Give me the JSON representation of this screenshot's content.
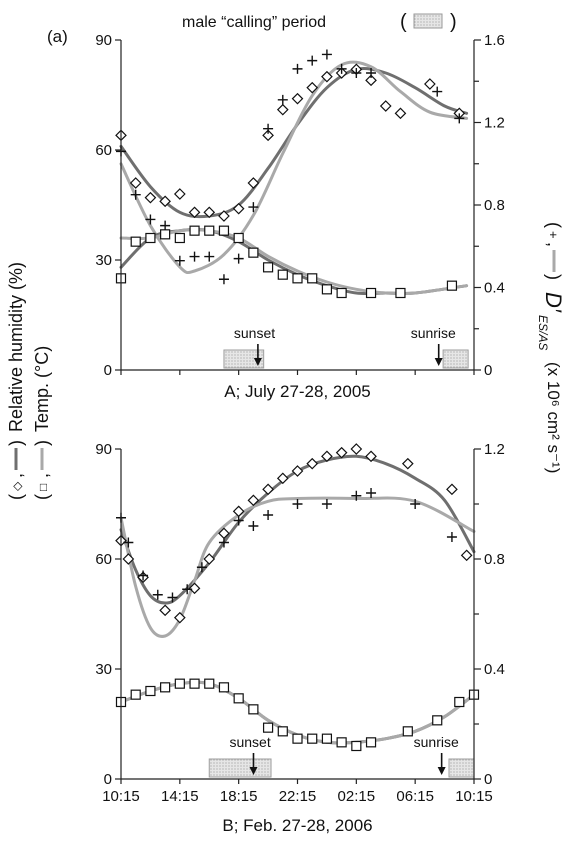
{
  "figure": {
    "panel_tag": "(a)",
    "header_text": "male “calling” period",
    "left_ylabel_rh": "Relative humidity (%)",
    "left_ylabel_temp": "Temp. (°C)",
    "right_ylabel_sub": "ES/AS",
    "right_ylabel_units": "(x 10⁶ cm² s⁻¹)",
    "colors": {
      "dark_line": "#6f6f6f",
      "light_line": "#a9a9a9",
      "axis": "#222222",
      "calling_fill": "#d9d9d9"
    }
  },
  "chart_data": [
    {
      "type": "line",
      "panel": "A",
      "xlabel": "A; July 27-28, 2005",
      "x_range": [
        0,
        24
      ],
      "ylim_left": [
        0,
        90
      ],
      "ylim_right": [
        0,
        1.6
      ],
      "y_ticks_left": [
        "0",
        "30",
        "60",
        "90"
      ],
      "y_ticks_right": [
        "0",
        "0.4",
        "0.8",
        "1.2",
        "1.6"
      ],
      "annotations": [
        {
          "text": "sunset",
          "x": 8.9
        },
        {
          "text": "sunrise",
          "x": 21.6
        }
      ],
      "calling_periods": [
        [
          7.0,
          9.7
        ],
        [
          21.9,
          23.6
        ]
      ],
      "series": [
        {
          "marker": "diamond",
          "axis": "left",
          "x": [
            0.0,
            1.0,
            2.0,
            3.0,
            4.0,
            5.0,
            6.0,
            7.0,
            8.0,
            9.0,
            10.0,
            11.0,
            12.0,
            13.0,
            14.0,
            15.0,
            16.0,
            17.0,
            18.0,
            19.0,
            21.0,
            23.0
          ],
          "y": [
            64,
            51,
            47,
            46,
            48,
            43,
            43,
            42,
            44,
            51,
            64,
            71,
            74,
            77,
            80,
            81,
            82,
            79,
            72,
            70,
            78,
            70
          ],
          "fit": [
            [
              0,
              61
            ],
            [
              2,
              50
            ],
            [
              4,
              43
            ],
            [
              6,
              42
            ],
            [
              8,
              45
            ],
            [
              10,
              55
            ],
            [
              12,
              67
            ],
            [
              14,
              77
            ],
            [
              16,
              82
            ],
            [
              18,
              81
            ],
            [
              20,
              77
            ],
            [
              22,
              72
            ],
            [
              23.5,
              70
            ]
          ]
        },
        {
          "marker": "plus",
          "axis": "right",
          "x": [
            0.0,
            1.0,
            2.0,
            3.0,
            4.0,
            5.0,
            6.0,
            7.0,
            8.0,
            9.0,
            10.0,
            11.0,
            12.0,
            13.0,
            14.0,
            15.0,
            16.0,
            17.0,
            21.5,
            23.0
          ],
          "y": [
            1.06,
            0.85,
            0.73,
            0.7,
            0.53,
            0.55,
            0.55,
            0.44,
            0.54,
            0.79,
            1.17,
            1.31,
            1.46,
            1.5,
            1.53,
            1.46,
            1.44,
            1.44,
            1.35,
            1.22
          ],
          "fit": [
            [
              0,
              1.0
            ],
            [
              2,
              0.7
            ],
            [
              4,
              0.5
            ],
            [
              5,
              0.48
            ],
            [
              7,
              0.56
            ],
            [
              9,
              0.75
            ],
            [
              11,
              1.05
            ],
            [
              13,
              1.33
            ],
            [
              15,
              1.48
            ],
            [
              17,
              1.47
            ],
            [
              19,
              1.35
            ],
            [
              21,
              1.25
            ],
            [
              23.5,
              1.22
            ]
          ]
        },
        {
          "marker": "square",
          "axis": "left",
          "x": [
            0.0,
            1.0,
            2.0,
            3.0,
            4.0,
            5.0,
            6.0,
            7.0,
            8.0,
            9.0,
            10.0,
            11.0,
            12.0,
            13.0,
            14.0,
            15.0,
            17.0,
            19.0,
            22.5
          ],
          "y": [
            25,
            35,
            36,
            37,
            36,
            38,
            38,
            38,
            36,
            32,
            28,
            26,
            25,
            25,
            22,
            21,
            21,
            21,
            23
          ],
          "fit": [
            [
              0,
              28
            ],
            [
              2,
              36
            ],
            [
              4,
              38
            ],
            [
              6,
              38
            ],
            [
              8,
              35
            ],
            [
              10,
              30
            ],
            [
              12,
              26
            ],
            [
              14,
              23
            ],
            [
              16,
              21
            ],
            [
              18,
              21
            ],
            [
              20,
              21
            ],
            [
              23.5,
              23
            ]
          ]
        },
        {
          "marker": "none",
          "axis": "left",
          "x": [
            0,
            2,
            4,
            6,
            8,
            10,
            12,
            14,
            16,
            18,
            20,
            23.5
          ],
          "y": [
            36,
            36,
            38,
            38,
            36,
            31,
            27,
            24,
            22,
            21,
            21,
            23
          ]
        }
      ]
    },
    {
      "type": "line",
      "panel": "B",
      "xlabel": "B; Feb. 27-28, 2006",
      "x_range": [
        0,
        24
      ],
      "x_ticks": [
        "10:15",
        "14:15",
        "18:15",
        "22:15",
        "02:15",
        "06:15",
        "10:15"
      ],
      "ylim_left": [
        0,
        90
      ],
      "ylim_right": [
        0,
        1.2
      ],
      "y_ticks_left": [
        "0",
        "30",
        "60",
        "90"
      ],
      "y_ticks_right": [
        "0",
        "0.4",
        "0.8",
        "1.2"
      ],
      "annotations": [
        {
          "text": "sunset",
          "x": 8.6
        },
        {
          "text": "sunrise",
          "x": 21.8
        }
      ],
      "calling_periods": [
        [
          6.0,
          10.2
        ],
        [
          22.3,
          24.0
        ]
      ],
      "series": [
        {
          "marker": "diamond",
          "axis": "left",
          "x": [
            0.0,
            0.5,
            1.5,
            3.0,
            4.0,
            5.0,
            6.0,
            7.0,
            8.0,
            9.0,
            10.0,
            11.0,
            12.0,
            13.0,
            14.0,
            15.0,
            16.0,
            17.0,
            19.5,
            22.5,
            23.5
          ],
          "y": [
            65,
            60,
            55,
            46,
            44,
            52,
            60,
            67,
            73,
            76,
            79,
            82,
            84,
            86,
            88,
            89,
            90,
            88,
            86,
            79,
            61
          ],
          "fit": [
            [
              0,
              68
            ],
            [
              1,
              57
            ],
            [
              2,
              50
            ],
            [
              3,
              48
            ],
            [
              4,
              50
            ],
            [
              6,
              59
            ],
            [
              8,
              70
            ],
            [
              10,
              78
            ],
            [
              12,
              84
            ],
            [
              14,
              87
            ],
            [
              16,
              88
            ],
            [
              18,
              86
            ],
            [
              20,
              82
            ],
            [
              22,
              76
            ],
            [
              24,
              62
            ]
          ]
        },
        {
          "marker": "plus",
          "axis": "right",
          "x": [
            0.0,
            0.5,
            1.5,
            2.5,
            3.5,
            4.5,
            5.5,
            7.0,
            8.0,
            9.0,
            10.0,
            12.0,
            14.0,
            16.0,
            17.0,
            20.0,
            22.5
          ],
          "y": [
            0.95,
            0.86,
            0.74,
            0.67,
            0.66,
            0.69,
            0.77,
            0.86,
            0.94,
            0.92,
            0.96,
            1.0,
            1.0,
            1.03,
            1.04,
            1.0,
            0.88
          ],
          "fit": [
            [
              0,
              0.95
            ],
            [
              1,
              0.7
            ],
            [
              2,
              0.55
            ],
            [
              3,
              0.52
            ],
            [
              4,
              0.58
            ],
            [
              5,
              0.72
            ],
            [
              6,
              0.86
            ],
            [
              8,
              0.96
            ],
            [
              10,
              1.01
            ],
            [
              12,
              1.02
            ],
            [
              16,
              1.02
            ],
            [
              20,
              1.01
            ],
            [
              24,
              0.9
            ]
          ]
        },
        {
          "marker": "square",
          "axis": "left",
          "x": [
            0.0,
            1.0,
            2.0,
            3.0,
            4.0,
            5.0,
            6.0,
            7.0,
            8.0,
            9.0,
            10.0,
            11.0,
            12.0,
            13.0,
            14.0,
            15.0,
            16.0,
            17.0,
            19.5,
            21.5,
            23.0,
            24.0
          ],
          "y": [
            21,
            23,
            24,
            25,
            26,
            26,
            26,
            25,
            22,
            19,
            14,
            13,
            11,
            11,
            11,
            10,
            9,
            10,
            13,
            16,
            21,
            23
          ],
          "fit": [
            [
              0,
              21
            ],
            [
              2,
              24
            ],
            [
              4,
              26
            ],
            [
              6,
              26
            ],
            [
              8,
              22
            ],
            [
              10,
              16
            ],
            [
              12,
              12
            ],
            [
              14,
              10
            ],
            [
              16,
              10
            ],
            [
              18,
              11
            ],
            [
              20,
              13
            ],
            [
              22,
              17
            ],
            [
              24,
              23
            ]
          ]
        },
        {
          "marker": "none",
          "axis": "left",
          "x": [
            0,
            2,
            4,
            6,
            8,
            10,
            12,
            14,
            16,
            18,
            20,
            22,
            24
          ],
          "y": [
            21,
            24,
            26,
            26,
            22,
            16,
            12,
            10,
            10,
            11,
            13,
            17,
            23
          ]
        }
      ]
    }
  ]
}
